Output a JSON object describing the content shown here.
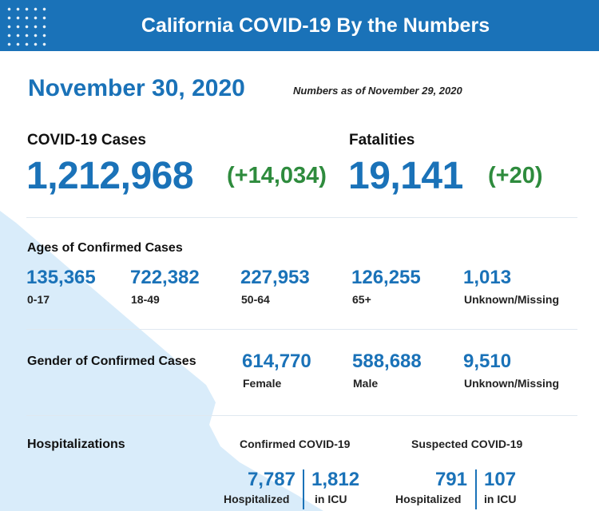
{
  "header": {
    "title": "California COVID-19 By the Numbers"
  },
  "report": {
    "date": "November 30, 2020",
    "as_of": "Numbers as of November 29, 2020"
  },
  "cases": {
    "label": "COVID-19 Cases",
    "total": "1,212,968",
    "change": "(+14,034)"
  },
  "fatalities": {
    "label": "Fatalities",
    "total": "19,141",
    "change": "(+20)"
  },
  "ages": {
    "label": "Ages of Confirmed Cases",
    "groups": [
      {
        "value": "135,365",
        "label": "0-17"
      },
      {
        "value": "722,382",
        "label": "18-49"
      },
      {
        "value": "227,953",
        "label": "50-64"
      },
      {
        "value": "126,255",
        "label": "65+"
      },
      {
        "value": "1,013",
        "label": "Unknown/Missing"
      }
    ]
  },
  "gender": {
    "label": "Gender of Confirmed Cases",
    "groups": [
      {
        "value": "614,770",
        "label": "Female"
      },
      {
        "value": "588,688",
        "label": "Male"
      },
      {
        "value": "9,510",
        "label": "Unknown/Missing"
      }
    ]
  },
  "hospitalizations": {
    "label": "Hospitalizations",
    "confirmed": {
      "label": "Confirmed COVID-19",
      "hospitalized": "7,787",
      "hospitalized_label": "Hospitalized",
      "icu": "1,812",
      "icu_label": "in ICU"
    },
    "suspected": {
      "label": "Suspected COVID-19",
      "hospitalized": "791",
      "hospitalized_label": "Hospitalized",
      "icu": "107",
      "icu_label": "in ICU"
    }
  },
  "colors": {
    "brand_blue": "#1a72b8",
    "change_green": "#2e8b3d",
    "map_tint": "#d9ecfa"
  }
}
